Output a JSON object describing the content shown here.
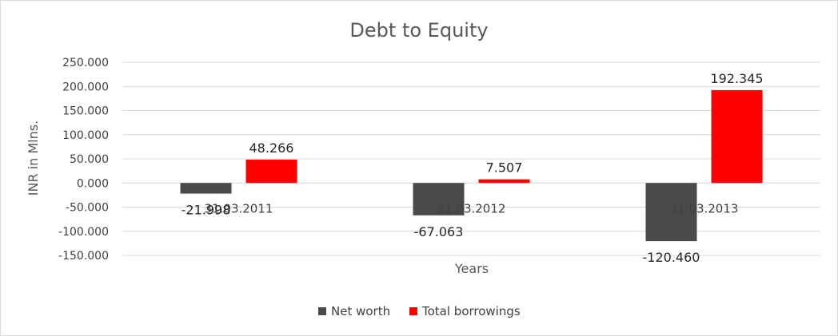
{
  "chart_data": {
    "type": "bar",
    "title": "Debt to Equity",
    "xlabel": "Years",
    "ylabel": "INR in Mlns.",
    "categories": [
      "31.03.2011",
      "31.03.2012",
      "31.03.2013"
    ],
    "ylim": [
      -150,
      250
    ],
    "yticks": [
      250,
      200,
      150,
      100,
      50,
      0,
      -50,
      -100,
      -150
    ],
    "ytick_labels": [
      "250.000",
      "200.000",
      "150.000",
      "100.000",
      "50.000",
      "0.000",
      "-50.000",
      "-100.000",
      "-150.000"
    ],
    "grid": true,
    "legend_position": "bottom",
    "series": [
      {
        "name": "Net worth",
        "color": "#4a4a4a",
        "values": [
          -21.998,
          -67.063,
          -120.46
        ],
        "labels": [
          "-21.998",
          "-67.063",
          "-120.460"
        ]
      },
      {
        "name": "Total borrowings",
        "color": "#ff0000",
        "values": [
          48.266,
          7.507,
          192.345
        ],
        "labels": [
          "48.266",
          "7.507",
          "192.345"
        ]
      }
    ]
  }
}
